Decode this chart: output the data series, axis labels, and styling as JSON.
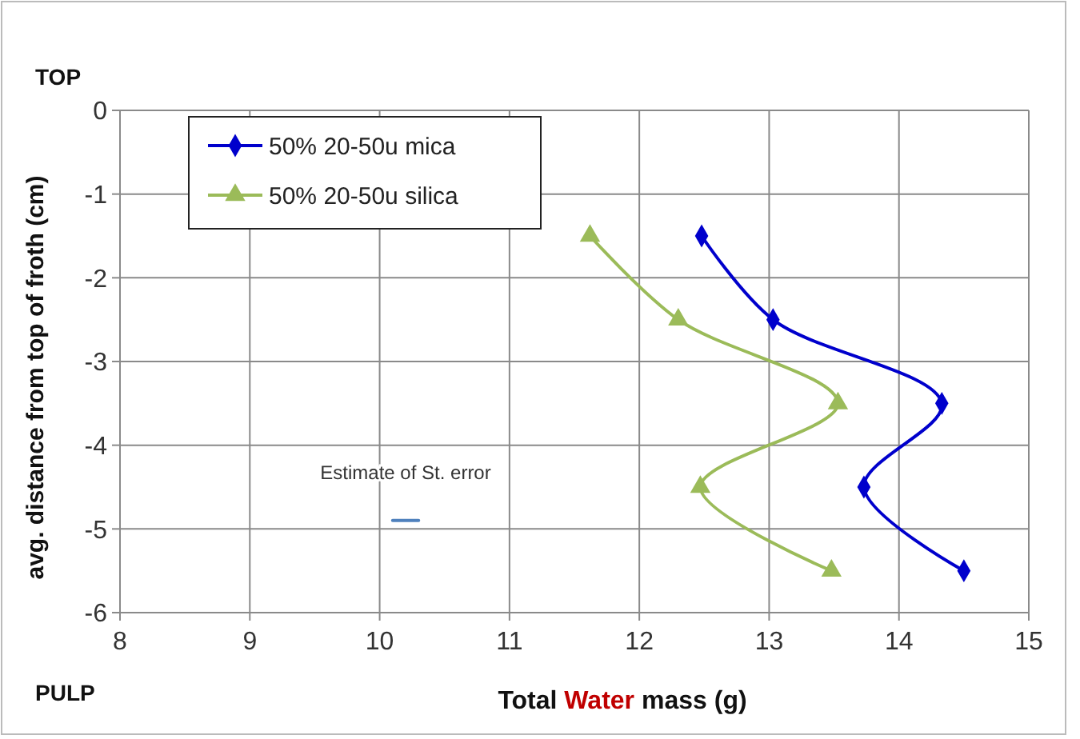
{
  "chart_data": {
    "type": "line",
    "xlabel": "Total Water mass  (g)",
    "ylabel": "avg. distance from top of froth (cm)",
    "xlim": [
      8,
      15
    ],
    "xticks": [
      8,
      9,
      10,
      11,
      12,
      13,
      14,
      15
    ],
    "ylim": [
      -6,
      0
    ],
    "yticks": [
      -6,
      -5,
      -4,
      -3,
      -2,
      -1,
      0
    ],
    "grid": true,
    "legend": "top left",
    "line_style": "solid",
    "series": [
      {
        "name": "50% 20-50u mica",
        "color": "#0000cc",
        "marker": "diamond",
        "x": [
          12.48,
          13.03,
          14.33,
          13.73,
          14.5
        ],
        "values": [
          -1.5,
          -2.5,
          -3.5,
          -4.5,
          -5.5
        ]
      },
      {
        "name": "50% 20-50u silica",
        "color": "#9bbb59",
        "marker": "triangle",
        "x": [
          11.62,
          12.3,
          13.53,
          12.47,
          13.48
        ],
        "values": [
          -1.5,
          -2.5,
          -3.5,
          -4.5,
          -5.5
        ]
      },
      {
        "color": "#4f81bd",
        "marker": "none",
        "x": [
          10.1,
          10.3
        ],
        "values": [
          -4.9,
          -4.9
        ]
      }
    ],
    "annotations": [
      "Estimate of St. error",
      "TOP",
      "PULP"
    ]
  }
}
